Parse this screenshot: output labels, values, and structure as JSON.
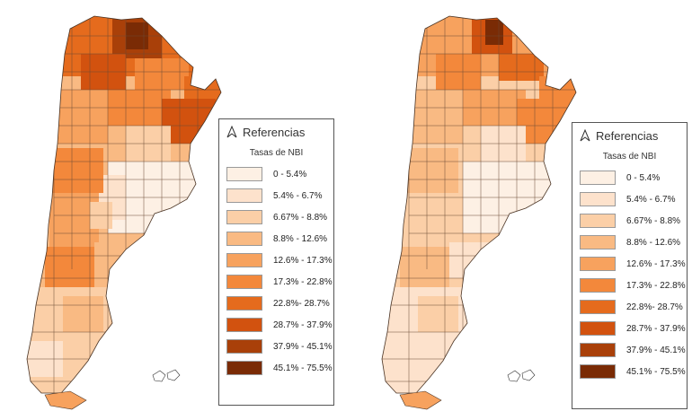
{
  "maps": [
    {
      "legend": {
        "title": "Referencias",
        "subtitle": "Tasas de NBI",
        "classes": [
          {
            "label": "0 - 5.4%",
            "color": "#fdf0e4"
          },
          {
            "label": "5.4% - 6.7%",
            "color": "#fde2cc"
          },
          {
            "label": "6.67% - 8.8%",
            "color": "#fbcfa7"
          },
          {
            "label": "8.8% - 12.6%",
            "color": "#f9ba83"
          },
          {
            "label": "12.6% - 17.3%",
            "color": "#f7a25e"
          },
          {
            "label": "17.3% - 22.8%",
            "color": "#f3883b"
          },
          {
            "label": "22.8%- 28.7%",
            "color": "#e56b1d"
          },
          {
            "label": "28.7% - 37.9%",
            "color": "#d2520f"
          },
          {
            "label": "37.9% - 45.1%",
            "color": "#a94009"
          },
          {
            "label": "45.1% - 75.5%",
            "color": "#7a2b05"
          }
        ]
      }
    },
    {
      "legend": {
        "title": "Referencias",
        "subtitle": "Tasas de NBI",
        "classes": [
          {
            "label": "0 - 5.4%",
            "color": "#fdf0e4"
          },
          {
            "label": "5.4% - 6.7%",
            "color": "#fde2cc"
          },
          {
            "label": "6.67% - 8.8%",
            "color": "#fbcfa7"
          },
          {
            "label": "8.8% - 12.6%",
            "color": "#f9ba83"
          },
          {
            "label": "12.6% - 17.3%",
            "color": "#f7a25e"
          },
          {
            "label": "17.3% - 22.8%",
            "color": "#f3883b"
          },
          {
            "label": "22.8%- 28.7%",
            "color": "#e56b1d"
          },
          {
            "label": "28.7% - 37.9%",
            "color": "#d2520f"
          },
          {
            "label": "37.9% - 45.1%",
            "color": "#a94009"
          },
          {
            "label": "45.1% - 75.5%",
            "color": "#7a2b05"
          }
        ]
      }
    }
  ]
}
